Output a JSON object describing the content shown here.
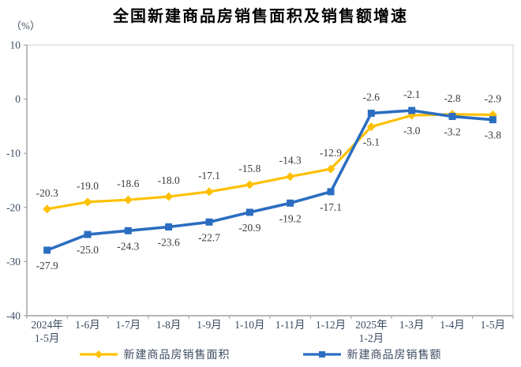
{
  "chart_data": {
    "type": "line",
    "title": "全国新建商品房销售面积及销售额增速",
    "y_axis_unit": "（%）",
    "categories": [
      "2024年\n1-5月",
      "1-6月",
      "1-7月",
      "1-8月",
      "1-9月",
      "1-10月",
      "1-11月",
      "1-12月",
      "2025年\n1-2月",
      "1-3月",
      "1-4月",
      "1-5月"
    ],
    "series": [
      {
        "name": "新建商品房销售面积",
        "color": "#FFC000",
        "marker": "diamond",
        "values": [
          -20.3,
          -19.0,
          -18.6,
          -18.0,
          -17.1,
          -15.8,
          -14.3,
          -12.9,
          -5.1,
          -3.0,
          -2.8,
          -2.9
        ],
        "label_sides": [
          "above",
          "above",
          "above",
          "above",
          "above",
          "above",
          "above",
          "above",
          "below",
          "below",
          "above",
          "above"
        ]
      },
      {
        "name": "新建商品房销售额",
        "color": "#2B6DC0",
        "marker": "square",
        "values": [
          -27.9,
          -25.0,
          -24.3,
          -23.6,
          -22.7,
          -20.9,
          -19.2,
          -17.1,
          -2.6,
          -2.1,
          -3.2,
          -3.8
        ],
        "label_sides": [
          "below",
          "below",
          "below",
          "below",
          "below",
          "below",
          "below",
          "below",
          "above",
          "above",
          "below",
          "below"
        ]
      }
    ],
    "ylim": [
      -40,
      10
    ],
    "y_ticks": [
      10,
      0,
      -10,
      -20,
      -30,
      -40
    ],
    "grid": false,
    "legend_position": "bottom",
    "colors": {
      "axis_text": "#3d4c63",
      "data_label": "#3b3b3b",
      "axis_line": "#8c8c8c",
      "plot_border": "#d9d9d9",
      "tick_mark": "#a6a6a6"
    }
  }
}
